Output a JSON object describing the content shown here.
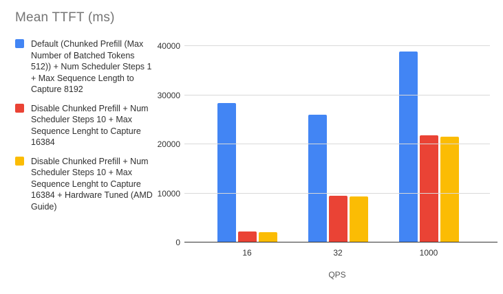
{
  "title": "Mean TTFT (ms)",
  "colors": {
    "series_blue": "#4285F4",
    "series_red": "#EA4335",
    "series_yellow": "#FBBC04",
    "title_text": "#757575",
    "gridline": "#d9d9d9",
    "baseline": "#333333",
    "tick_text": "#333333"
  },
  "chart_data": {
    "type": "bar",
    "title": "Mean TTFT (ms)",
    "xlabel": "QPS",
    "ylabel": "",
    "categories": [
      "16",
      "32",
      "1000"
    ],
    "series": [
      {
        "name": "Default (Chunked Prefill (Max Number of Batched Tokens 512)) + Num Scheduler Steps 1 + Max Sequence Length to Capture 8192",
        "color": "#4285F4",
        "values": [
          28300,
          25900,
          38900
        ]
      },
      {
        "name": "Disable Chunked Prefill + Num Scheduler Steps 10 + Max Sequence Lenght to Capture 16384",
        "color": "#EA4335",
        "values": [
          2100,
          9400,
          21800
        ]
      },
      {
        "name": "Disable Chunked Prefill + Num Scheduler Steps 10 + Max Sequence Lenght to Capture 16384 + Hardware Tuned (AMD Guide)",
        "color": "#FBBC04",
        "values": [
          1900,
          9300,
          21500
        ]
      }
    ],
    "ylim": [
      0,
      40000
    ],
    "yticks": [
      0,
      10000,
      20000,
      30000,
      40000
    ],
    "grid": true,
    "legend_position": "left"
  }
}
